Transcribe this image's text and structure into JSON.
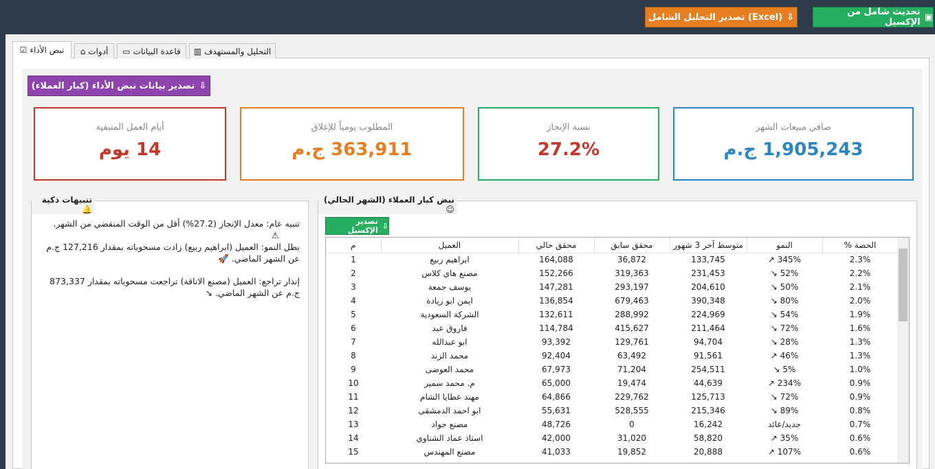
{
  "header": {
    "refresh_button": "تحديث شامل من الإكسيل",
    "export_button": "(Excel) تصدير التحليل الشامل"
  },
  "tabs": [
    "نبض الأداء",
    "أدوات",
    "قاعدة البيانات",
    "التحليل والمستهدف"
  ],
  "export_pulse_button": "تصدير بيانات نبض الأداء (كبار العملاء)",
  "kpis": [
    {
      "title": "صافي مبيعات الشهر",
      "value": "1,905,243 ج.م"
    },
    {
      "title": "نسبة الإنجاز",
      "value": "27.2%"
    },
    {
      "title": "المطلوب يومياً للإغلاق",
      "value": "363,911 ج.م"
    },
    {
      "title": "أيام العمل المتبقية",
      "value": "14 يوم"
    }
  ],
  "alerts_panel": {
    "title": "تنبيهات ذكية",
    "alerts": [
      "تنبيه عام: معدل الإنجاز (27.2%) أقل من الوقت المنقضي من الشهر.",
      "بطل النمو: العميل (ابراهيم ربيع) زادت مسحوباته بمقدار 127,216 ج.م عن الشهر الماضي.",
      "إنذار تراجع: العميل (مصنع الاناقة) تراجعت مسحوباته بمقدار 873,337 ج.م عن الشهر الماضي."
    ]
  },
  "clients_panel": {
    "title": "نبض كبار العملاء (الشهر الحالي)",
    "export_button": "تصدير الإكسيل"
  },
  "table": {
    "columns": [
      "م",
      "العميل",
      "محقق حالي",
      "محقق سابق",
      "متوسط آخر 3 شهور",
      "النمو",
      "% الحصة"
    ],
    "rows": [
      [
        "1",
        "ابراهيم ربيع",
        "164,088",
        "36,872",
        "133,745",
        "↗ 345%",
        "2.3%"
      ],
      [
        "2",
        "مصنع هاي كلاس",
        "152,266",
        "319,363",
        "231,453",
        "↘ 52%",
        "2.2%"
      ],
      [
        "3",
        "يوسف جمعة",
        "147,281",
        "293,197",
        "204,610",
        "↘ 50%",
        "2.1%"
      ],
      [
        "4",
        "ايمن ابو زيادة",
        "136,854",
        "679,463",
        "390,348",
        "↘ 80%",
        "2.0%"
      ],
      [
        "5",
        "الشركة السعودية",
        "132,611",
        "288,992",
        "224,969",
        "↘ 54%",
        "1.9%"
      ],
      [
        "6",
        "فاروق عبد",
        "114,784",
        "415,627",
        "211,464",
        "↘ 72%",
        "1.6%"
      ],
      [
        "7",
        "ابو عبدالله",
        "93,392",
        "129,761",
        "94,704",
        "↘ 28%",
        "1.3%"
      ],
      [
        "8",
        "محمد الزند",
        "92,404",
        "63,492",
        "91,561",
        "↗ 46%",
        "1.3%"
      ],
      [
        "9",
        "محمد العوضى",
        "67,973",
        "71,204",
        "254,511",
        "↘ 5%",
        "1.0%"
      ],
      [
        "10",
        "م. محمد سمير",
        "65,000",
        "19,474",
        "44,639",
        "↗ 234%",
        "0.9%"
      ],
      [
        "11",
        "مهند عطايا الشام",
        "64,866",
        "229,762",
        "125,713",
        "↘ 72%",
        "0.9%"
      ],
      [
        "12",
        "ابو احمد الدمشقى",
        "55,631",
        "528,555",
        "215,346",
        "↘ 89%",
        "0.8%"
      ],
      [
        "13",
        "مصنع جواد",
        "48,726",
        "0",
        "16,242",
        "جديد/عائد",
        "0.7%"
      ],
      [
        "14",
        "استاذ عماد الشناوي",
        "42,000",
        "31,020",
        "58,820",
        "↗ 35%",
        "0.6%"
      ],
      [
        "15",
        "مصنع المهندس",
        "41,033",
        "19,852",
        "20,888",
        "↗ 107%",
        "0.6%"
      ]
    ]
  }
}
